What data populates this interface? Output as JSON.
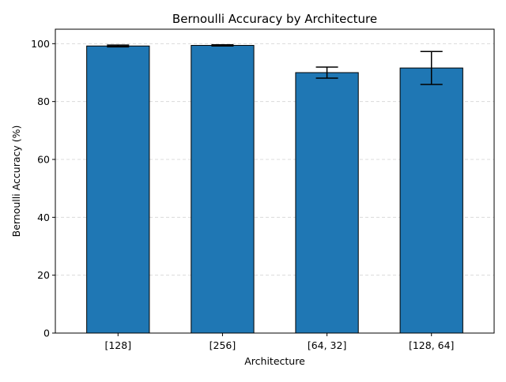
{
  "chart_data": {
    "type": "bar",
    "title": "Bernoulli Accuracy by Architecture",
    "xlabel": "Architecture",
    "ylabel": "Bernoulli Accuracy (%)",
    "categories": [
      "[128]",
      "[256]",
      "[64, 32]",
      "[128, 64]"
    ],
    "values": [
      99.2,
      99.4,
      90.0,
      91.6
    ],
    "errors": [
      0.3,
      0.2,
      1.9,
      5.7
    ],
    "ylim": [
      0,
      105
    ],
    "yticks": [
      0,
      20,
      40,
      60,
      80,
      100
    ],
    "grid": "y-dashed",
    "legend": "none",
    "colors": {
      "bar_fill": "#1f77b4",
      "bar_edge": "#000000",
      "errorbar": "#000000",
      "grid": "#d3d3d3"
    }
  }
}
